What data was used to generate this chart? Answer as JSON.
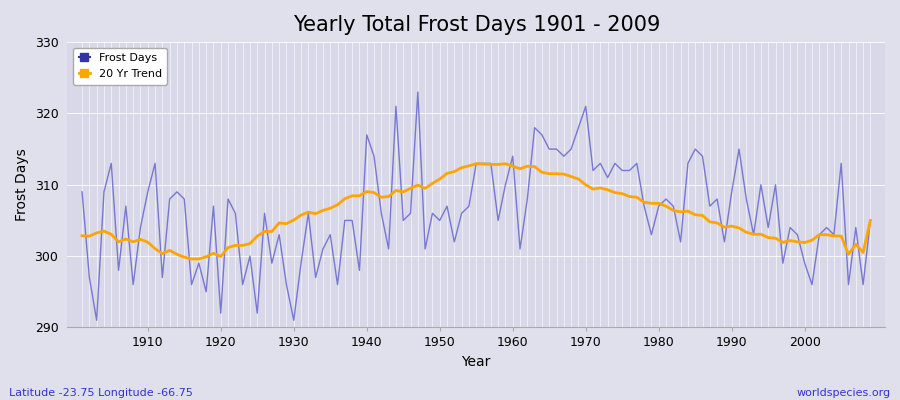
{
  "title": "Yearly Total Frost Days 1901 - 2009",
  "xlabel": "Year",
  "ylabel": "Frost Days",
  "lat_lon_label": "Latitude -23.75 Longitude -66.75",
  "watermark": "worldspecies.org",
  "ylim": [
    290,
    330
  ],
  "yticks": [
    290,
    300,
    310,
    320,
    330
  ],
  "xticks": [
    1910,
    1920,
    1930,
    1940,
    1950,
    1960,
    1970,
    1980,
    1990,
    2000
  ],
  "years": [
    1901,
    1902,
    1903,
    1904,
    1905,
    1906,
    1907,
    1908,
    1909,
    1910,
    1911,
    1912,
    1913,
    1914,
    1915,
    1916,
    1917,
    1918,
    1919,
    1920,
    1921,
    1922,
    1923,
    1924,
    1925,
    1926,
    1927,
    1928,
    1929,
    1930,
    1931,
    1932,
    1933,
    1934,
    1935,
    1936,
    1937,
    1938,
    1939,
    1940,
    1941,
    1942,
    1943,
    1944,
    1945,
    1946,
    1947,
    1948,
    1949,
    1950,
    1951,
    1952,
    1953,
    1954,
    1955,
    1956,
    1957,
    1958,
    1959,
    1960,
    1961,
    1962,
    1963,
    1964,
    1965,
    1966,
    1967,
    1968,
    1969,
    1970,
    1971,
    1972,
    1973,
    1974,
    1975,
    1976,
    1977,
    1978,
    1979,
    1980,
    1981,
    1982,
    1983,
    1984,
    1985,
    1986,
    1987,
    1988,
    1989,
    1990,
    1991,
    1992,
    1993,
    1994,
    1995,
    1996,
    1997,
    1998,
    1999,
    2000,
    2001,
    2002,
    2003,
    2004,
    2005,
    2006,
    2007,
    2008,
    2009
  ],
  "frost_days": [
    309,
    297,
    291,
    309,
    313,
    298,
    307,
    296,
    304,
    309,
    313,
    297,
    308,
    309,
    308,
    296,
    299,
    295,
    307,
    292,
    308,
    306,
    296,
    300,
    292,
    306,
    299,
    303,
    296,
    291,
    299,
    306,
    297,
    301,
    303,
    296,
    305,
    305,
    298,
    317,
    314,
    306,
    301,
    321,
    305,
    306,
    323,
    301,
    306,
    305,
    307,
    302,
    306,
    307,
    313,
    313,
    313,
    305,
    310,
    314,
    301,
    308,
    318,
    317,
    315,
    315,
    314,
    315,
    318,
    321,
    312,
    313,
    311,
    313,
    312,
    312,
    313,
    307,
    303,
    307,
    308,
    307,
    302,
    313,
    315,
    314,
    307,
    308,
    302,
    309,
    315,
    308,
    303,
    310,
    304,
    310,
    299,
    304,
    303,
    299,
    296,
    303,
    304,
    303,
    313,
    296,
    304,
    296,
    305
  ],
  "line_color": "#6666cc",
  "line_color_solid": "#3333aa",
  "trend_color": "#FFA500",
  "fig_bg_color": "#e0e0ec",
  "plot_bg_color": "#d8d8e8",
  "grid_color": "#ffffff",
  "title_fontsize": 15,
  "label_fontsize": 10,
  "tick_fontsize": 9,
  "annotation_color": "#3333cc"
}
